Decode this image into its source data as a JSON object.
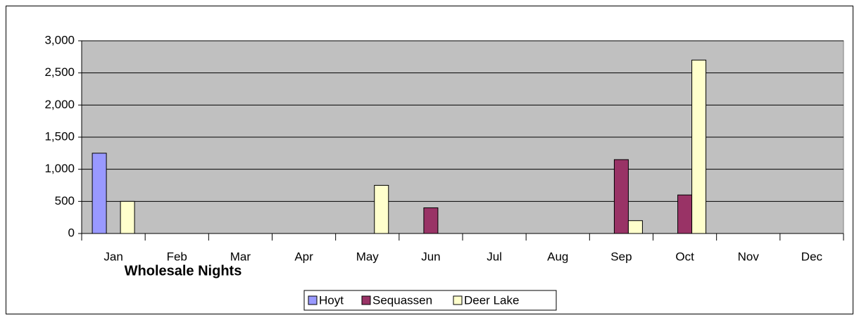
{
  "chart_data": {
    "type": "bar",
    "title": "Wholesale Nights",
    "categories": [
      "Jan",
      "Feb",
      "Mar",
      "Apr",
      "May",
      "Jun",
      "Jul",
      "Aug",
      "Sep",
      "Oct",
      "Nov",
      "Dec"
    ],
    "series": [
      {
        "name": "Hoyt",
        "color": "#9999ff",
        "values": [
          1250,
          0,
          0,
          0,
          0,
          0,
          0,
          0,
          0,
          0,
          0,
          0
        ]
      },
      {
        "name": "Sequassen",
        "color": "#993366",
        "values": [
          0,
          0,
          0,
          0,
          0,
          400,
          0,
          0,
          1150,
          600,
          0,
          0
        ]
      },
      {
        "name": "Deer Lake",
        "color": "#ffffcc",
        "values": [
          500,
          0,
          0,
          0,
          750,
          0,
          0,
          0,
          200,
          2700,
          0,
          0
        ]
      }
    ],
    "ylim": [
      0,
      3000
    ],
    "yticks": [
      0,
      500,
      {
        "value": 1000,
        "label": "1,000"
      },
      {
        "value": 1500,
        "label": "1,500"
      },
      {
        "value": 2000,
        "label": "2,000"
      },
      {
        "value": 2500,
        "label": "2,500"
      },
      {
        "value": 3000,
        "label": "3,000"
      }
    ],
    "grid": true,
    "plot_background": "#c0c0c0",
    "legend": "bottom"
  }
}
